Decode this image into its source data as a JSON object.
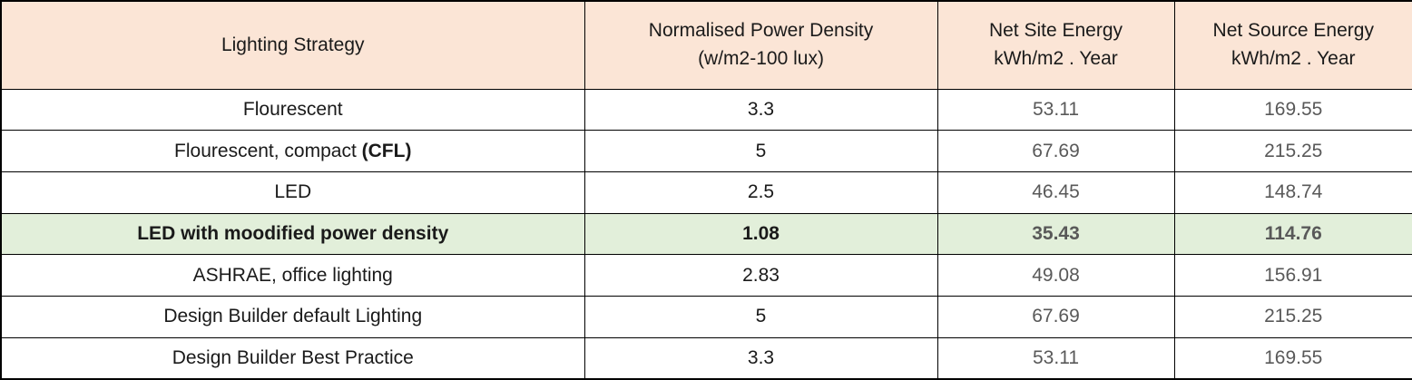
{
  "colors": {
    "header_bg": "#fbe5d6",
    "highlight_row_bg": "#e2efda",
    "primary_text": "#1a1a1a",
    "energy_text": "#595959",
    "border": "#000000"
  },
  "table": {
    "header": {
      "strategy": "Lighting Strategy",
      "npd_line1": "Normalised Power Density",
      "npd_line2": "(w/m2-100 lux)",
      "site_line1": "Net Site Energy",
      "site_line2": "kWh/m2 . Year",
      "source_line1": "Net Source Energy",
      "source_line2": "kWh/m2 . Year"
    },
    "rows": [
      {
        "strategy_parts": [
          {
            "text": "Flourescent",
            "bold": false
          }
        ],
        "npd": "3.3",
        "site": "53.11",
        "source": "169.55",
        "highlight": false
      },
      {
        "strategy_parts": [
          {
            "text": "Flourescent, compact ",
            "bold": false
          },
          {
            "text": "(CFL)",
            "bold": true
          }
        ],
        "npd": "5",
        "site": "67.69",
        "source": "215.25",
        "highlight": false
      },
      {
        "strategy_parts": [
          {
            "text": "LED",
            "bold": false
          }
        ],
        "npd": "2.5",
        "site": "46.45",
        "source": "148.74",
        "highlight": false
      },
      {
        "strategy_parts": [
          {
            "text": "LED with moodified power density",
            "bold": true
          }
        ],
        "npd": "1.08",
        "site": "35.43",
        "source": "114.76",
        "highlight": true
      },
      {
        "strategy_parts": [
          {
            "text": "ASHRAE, office lighting",
            "bold": false
          }
        ],
        "npd": "2.83",
        "site": "49.08",
        "source": "156.91",
        "highlight": false
      },
      {
        "strategy_parts": [
          {
            "text": "Design Builder default Lighting",
            "bold": false
          }
        ],
        "npd": "5",
        "site": "67.69",
        "source": "215.25",
        "highlight": false
      },
      {
        "strategy_parts": [
          {
            "text": "Design Builder Best Practice",
            "bold": false
          }
        ],
        "npd": "3.3",
        "site": "53.11",
        "source": "169.55",
        "highlight": false
      }
    ]
  },
  "chart_data": {
    "type": "table",
    "title": "",
    "columns": [
      "Lighting Strategy",
      "Normalised Power Density (w/m2-100 lux)",
      "Net Site Energy kWh/m2 . Year",
      "Net Source Energy kWh/m2 . Year"
    ],
    "rows": [
      [
        "Flourescent",
        3.3,
        53.11,
        169.55
      ],
      [
        "Flourescent, compact (CFL)",
        5,
        67.69,
        215.25
      ],
      [
        "LED",
        2.5,
        46.45,
        148.74
      ],
      [
        "LED with moodified power density",
        1.08,
        35.43,
        114.76
      ],
      [
        "ASHRAE, office lighting",
        2.83,
        49.08,
        156.91
      ],
      [
        "Design Builder default Lighting",
        5,
        67.69,
        215.25
      ],
      [
        "Design Builder Best Practice",
        3.3,
        53.11,
        169.55
      ]
    ],
    "highlighted_row_index": 3,
    "layout": {
      "header_bg": "#fbe5d6",
      "highlight_bg": "#e2efda",
      "grid": true
    }
  }
}
